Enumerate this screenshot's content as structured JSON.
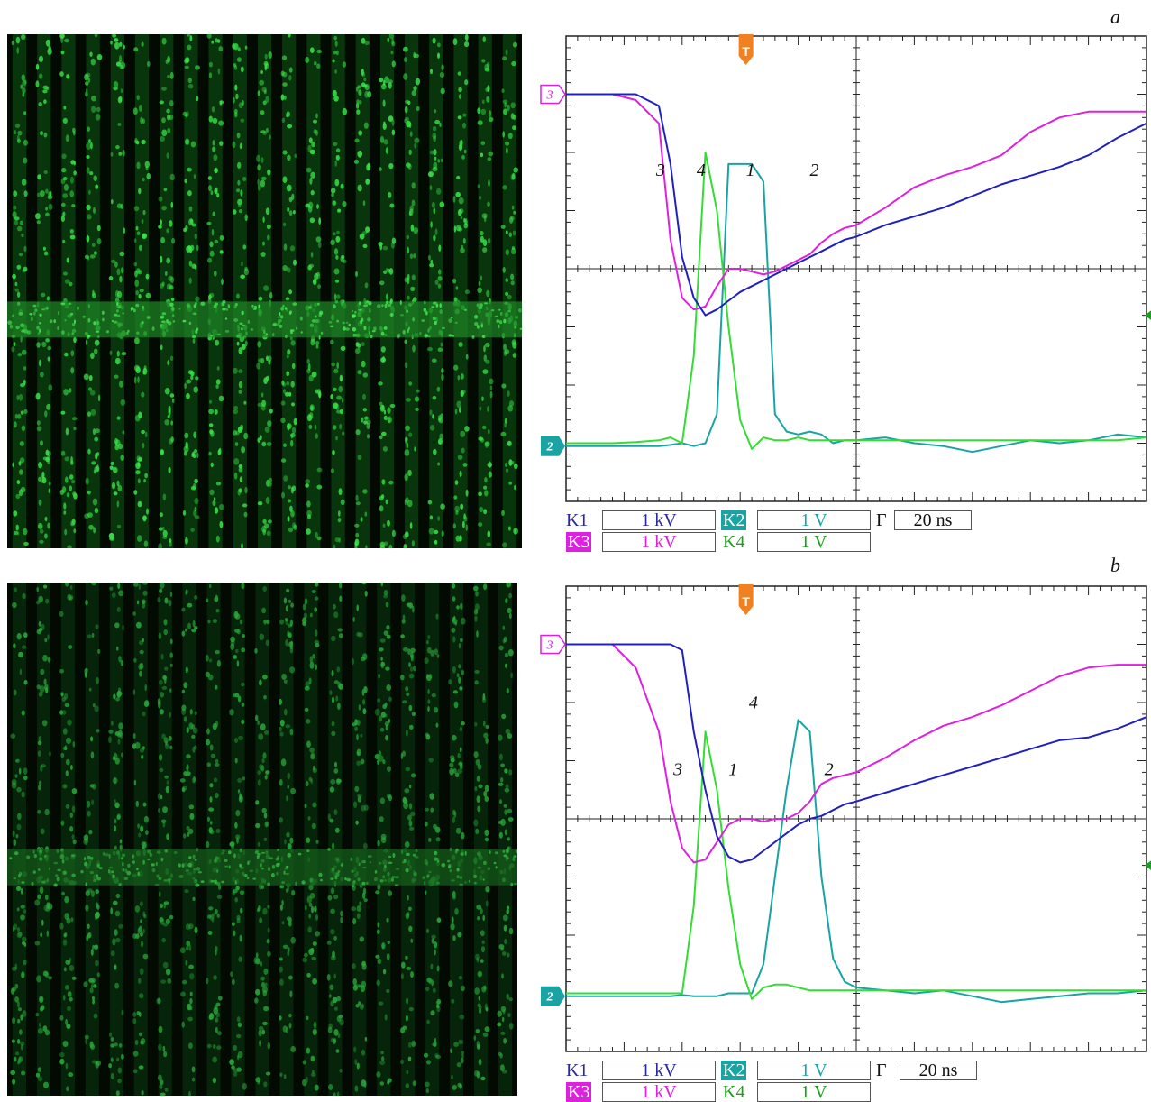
{
  "figure": {
    "panels": [
      {
        "letter": "a",
        "marker_T": "T",
        "marker_ch3": "3",
        "marker_ch2": "2",
        "curve_labels": [
          "3",
          "4",
          "1",
          "2"
        ],
        "legend": {
          "k1": {
            "name": "K1",
            "value": "1 kV",
            "color": "#2a2aa0"
          },
          "k2": {
            "name": "K2",
            "value": "1 V",
            "color": "#1aa3a3"
          },
          "k3": {
            "name": "K3",
            "value": "1 kV",
            "color": "#e020e0"
          },
          "k4": {
            "name": "K4",
            "value": "1 V",
            "color": "#1aa01a"
          },
          "time": {
            "name": "Г",
            "value": "20 ns"
          }
        }
      },
      {
        "letter": "b",
        "marker_T": "T",
        "marker_ch3": "3",
        "marker_ch2": "2",
        "curve_labels": [
          "4",
          "3",
          "1",
          "2"
        ],
        "legend": {
          "k1": {
            "name": "K1",
            "value": "1 kV",
            "color": "#2a2aa0"
          },
          "k2": {
            "name": "K2",
            "value": "1 V",
            "color": "#1aa3a3"
          },
          "k3": {
            "name": "K3",
            "value": "1 kV",
            "color": "#e020e0"
          },
          "k4": {
            "name": "K4",
            "value": "1 V",
            "color": "#1aa01a"
          },
          "time": {
            "name": "Г",
            "value": "20 ns"
          }
        }
      }
    ]
  },
  "chart_data": [
    {
      "type": "line",
      "title": "a",
      "x_unit_per_div": "20 ns",
      "x": [
        0,
        0.4,
        0.8,
        1.2,
        1.6,
        1.8,
        2.0,
        2.2,
        2.4,
        2.6,
        2.8,
        3.0,
        3.2,
        3.4,
        3.6,
        3.8,
        4.0,
        4.2,
        4.4,
        4.6,
        4.8,
        5.0,
        5.5,
        6.0,
        6.5,
        7.0,
        7.5,
        8.0,
        8.5,
        9.0,
        9.5,
        10.0
      ],
      "series": [
        {
          "name": "1",
          "color": "#33dd33",
          "values": [
            -3.0,
            -3.0,
            -3.0,
            -2.98,
            -2.95,
            -2.9,
            -3.0,
            -1.5,
            2.0,
            1.0,
            -1.0,
            -2.6,
            -3.1,
            -2.9,
            -2.95,
            -2.95,
            -2.9,
            -2.95,
            -2.95,
            -2.95,
            -2.95,
            -2.95,
            -2.95,
            -2.95,
            -2.95,
            -2.95,
            -2.95,
            -2.95,
            -2.95,
            -2.95,
            -2.95,
            -2.9
          ]
        },
        {
          "name": "2",
          "color": "#1aa3a3",
          "values": [
            -3.05,
            -3.05,
            -3.05,
            -3.05,
            -3.05,
            -3.03,
            -3.0,
            -3.05,
            -3.0,
            -2.5,
            1.8,
            1.8,
            1.8,
            1.5,
            -2.5,
            -2.8,
            -2.85,
            -2.8,
            -2.85,
            -3.0,
            -2.95,
            -2.95,
            -2.9,
            -3.0,
            -3.05,
            -3.15,
            -3.05,
            -2.95,
            -3.0,
            -2.95,
            -2.85,
            -2.9
          ]
        },
        {
          "name": "3",
          "color": "#e020e0",
          "values": [
            3.0,
            3.0,
            3.0,
            2.9,
            2.5,
            0.5,
            -0.5,
            -0.7,
            -0.65,
            -0.3,
            0.0,
            0.0,
            -0.05,
            -0.1,
            -0.05,
            0.05,
            0.15,
            0.25,
            0.45,
            0.6,
            0.7,
            0.75,
            1.05,
            1.4,
            1.6,
            1.75,
            1.95,
            2.35,
            2.6,
            2.7,
            2.7,
            2.7
          ]
        },
        {
          "name": "4",
          "color": "#2020c0",
          "values": [
            3.0,
            3.0,
            3.0,
            3.0,
            2.8,
            1.8,
            0.2,
            -0.5,
            -0.8,
            -0.7,
            -0.55,
            -0.4,
            -0.3,
            -0.2,
            -0.1,
            0.0,
            0.1,
            0.2,
            0.3,
            0.4,
            0.5,
            0.55,
            0.75,
            0.9,
            1.05,
            1.25,
            1.45,
            1.6,
            1.75,
            1.95,
            2.25,
            2.5
          ]
        }
      ],
      "xlim": [
        0,
        10
      ],
      "ylim": [
        -4,
        4
      ],
      "grid": true,
      "divisions_x": 10,
      "divisions_y": 8
    },
    {
      "type": "line",
      "title": "b",
      "x_unit_per_div": "20 ns",
      "x": [
        0,
        0.4,
        0.8,
        1.2,
        1.6,
        1.8,
        2.0,
        2.2,
        2.4,
        2.6,
        2.8,
        3.0,
        3.2,
        3.4,
        3.6,
        3.8,
        4.0,
        4.2,
        4.4,
        4.6,
        4.8,
        5.0,
        5.5,
        6.0,
        6.5,
        7.0,
        7.5,
        8.0,
        8.5,
        9.0,
        9.5,
        10.0
      ],
      "series": [
        {
          "name": "1",
          "color": "#33dd33",
          "values": [
            -3.0,
            -3.0,
            -3.0,
            -3.0,
            -3.0,
            -3.0,
            -3.0,
            -1.5,
            1.5,
            0.5,
            -1.2,
            -2.5,
            -3.1,
            -2.9,
            -2.85,
            -2.85,
            -2.9,
            -2.95,
            -2.95,
            -2.95,
            -2.95,
            -2.95,
            -2.95,
            -2.95,
            -2.95,
            -2.95,
            -2.95,
            -2.95,
            -2.95,
            -2.95,
            -2.95,
            -2.95
          ]
        },
        {
          "name": "2",
          "color": "#1aa3a3",
          "values": [
            -3.05,
            -3.05,
            -3.05,
            -3.05,
            -3.05,
            -3.05,
            -3.03,
            -3.05,
            -3.05,
            -3.05,
            -3.0,
            -3.0,
            -3.0,
            -2.5,
            -1.0,
            0.5,
            1.7,
            1.5,
            -1.0,
            -2.4,
            -2.8,
            -2.9,
            -2.95,
            -3.0,
            -2.95,
            -3.05,
            -3.15,
            -3.1,
            -3.05,
            -3.0,
            -3.0,
            -2.95
          ]
        },
        {
          "name": "3",
          "color": "#e020e0",
          "values": [
            3.0,
            3.0,
            3.0,
            2.6,
            1.5,
            0.3,
            -0.5,
            -0.75,
            -0.7,
            -0.4,
            -0.1,
            0.0,
            0.0,
            -0.05,
            0.0,
            0.0,
            0.1,
            0.3,
            0.6,
            0.7,
            0.75,
            0.8,
            1.05,
            1.35,
            1.6,
            1.75,
            1.95,
            2.2,
            2.45,
            2.6,
            2.65,
            2.65
          ]
        },
        {
          "name": "4",
          "color": "#2020c0",
          "values": [
            3.0,
            3.0,
            3.0,
            3.0,
            3.0,
            3.0,
            2.9,
            1.5,
            0.5,
            -0.3,
            -0.65,
            -0.75,
            -0.7,
            -0.55,
            -0.4,
            -0.25,
            -0.1,
            0.0,
            0.05,
            0.15,
            0.25,
            0.3,
            0.45,
            0.6,
            0.75,
            0.9,
            1.05,
            1.2,
            1.35,
            1.4,
            1.55,
            1.75
          ]
        }
      ],
      "xlim": [
        0,
        10
      ],
      "ylim": [
        -4,
        4
      ],
      "grid": true,
      "divisions_x": 10,
      "divisions_y": 8
    }
  ]
}
